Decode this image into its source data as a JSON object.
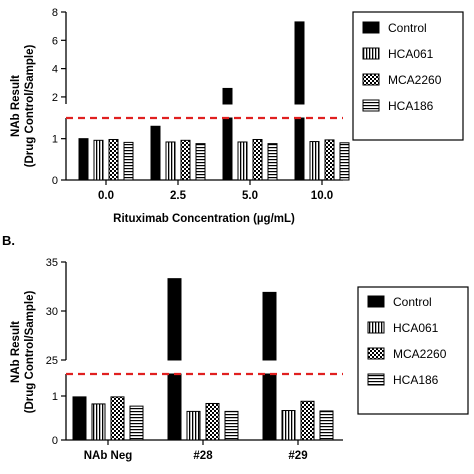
{
  "chart_data": [
    {
      "type": "bar",
      "panel_label": "",
      "categories": [
        "0.0",
        "2.5",
        "5.0",
        "10.0"
      ],
      "xlabel": "Rituximab Concentration (µg/mL)",
      "ylabel": [
        "NAb Result",
        "(Drug Control/Sample)"
      ],
      "axis_break": {
        "lower_range": [
          0,
          1.5
        ],
        "upper_range": [
          1.5,
          8
        ]
      },
      "yticks_lower": [
        "0",
        "1"
      ],
      "yticks_upper": [
        "2",
        "4",
        "6",
        "8"
      ],
      "threshold": 1.5,
      "series": [
        {
          "name": "Control",
          "values": [
            1.0,
            1.3,
            2.6,
            7.3
          ]
        },
        {
          "name": "HCA061",
          "values": [
            0.96,
            0.92,
            0.92,
            0.93
          ]
        },
        {
          "name": "MCA2260",
          "values": [
            0.98,
            0.96,
            0.98,
            0.97
          ]
        },
        {
          "name": "HCA186",
          "values": [
            0.91,
            0.88,
            0.88,
            0.9
          ]
        }
      ],
      "legend_position": "top-right"
    },
    {
      "type": "bar",
      "panel_label": "B.",
      "categories": [
        "NAb Neg",
        "#28",
        "#29"
      ],
      "xlabel": "",
      "ylabel": [
        "NAb Result",
        "(Drug Control/Sample)"
      ],
      "axis_break": {
        "lower_range": [
          0,
          1.5
        ],
        "upper_range": [
          25,
          35
        ]
      },
      "yticks_lower": [
        "0",
        "1"
      ],
      "yticks_upper": [
        "25",
        "30",
        "35"
      ],
      "threshold": 1.5,
      "series": [
        {
          "name": "Control",
          "values": [
            0.98,
            33.3,
            31.9
          ]
        },
        {
          "name": "HCA061",
          "values": [
            0.82,
            0.65,
            0.67
          ]
        },
        {
          "name": "MCA2260",
          "values": [
            0.98,
            0.83,
            0.88
          ]
        },
        {
          "name": "HCA186",
          "values": [
            0.77,
            0.65,
            0.66
          ]
        }
      ],
      "legend_position": "right"
    }
  ]
}
